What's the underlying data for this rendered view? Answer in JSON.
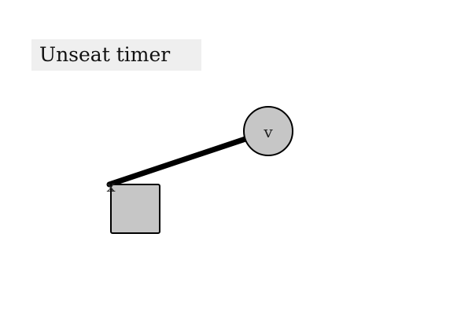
{
  "task": {
    "label": "Unseat timer"
  },
  "scene": {
    "square_label": "x",
    "circle_label": "v",
    "fill_color": "#c6c6c6",
    "stroke_color": "#000000",
    "background_color": "#ffffff",
    "label_background_color": "#efefef"
  }
}
